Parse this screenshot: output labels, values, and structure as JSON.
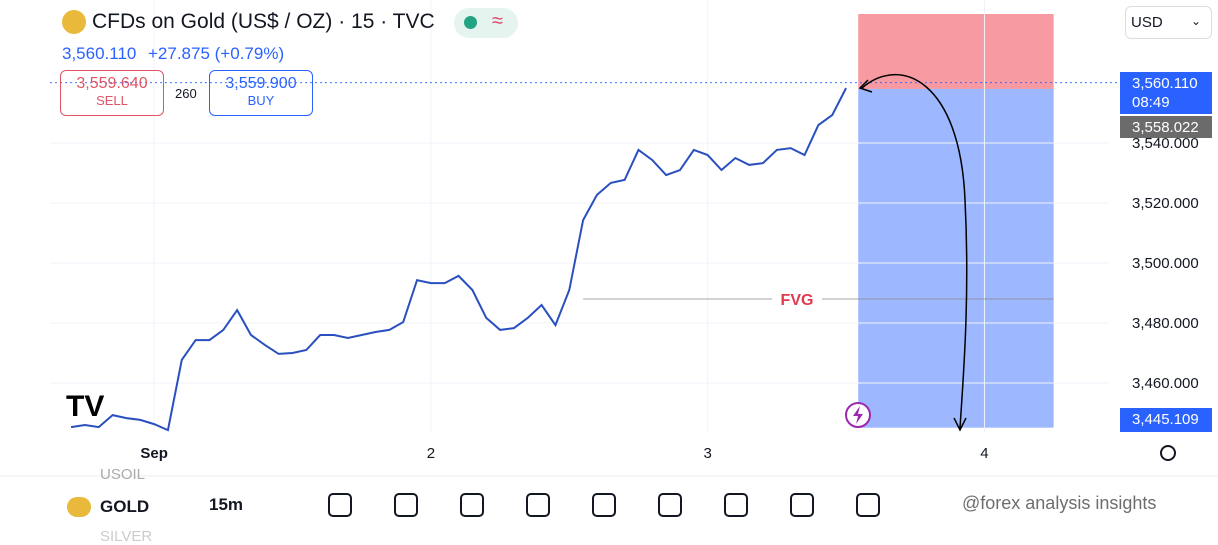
{
  "header": {
    "title": "CFDs on Gold (US$ / OZ) · 15 · TVC",
    "price": "3,560.110",
    "change": "+27.875 (+0.79%)",
    "sell_price": "3,559.640",
    "sell_label": "SELL",
    "spread": "260",
    "buy_price": "3,559.900",
    "buy_label": "BUY",
    "currency": "USD"
  },
  "chart_data": {
    "type": "line",
    "color": "#2a4fbf",
    "x": [
      0.7,
      0.75,
      0.8,
      0.85,
      0.9,
      0.95,
      1.0,
      1.05,
      1.1,
      1.15,
      1.2,
      1.25,
      1.3,
      1.35,
      1.4,
      1.45,
      1.5,
      1.55,
      1.6,
      1.65,
      1.7,
      1.75,
      1.8,
      1.85,
      1.9,
      1.95,
      2.0,
      2.05,
      2.1,
      2.15,
      2.2,
      2.25,
      2.3,
      2.35,
      2.4,
      2.45,
      2.5,
      2.55,
      2.6,
      2.65,
      2.7,
      2.75,
      2.8,
      2.85,
      2.9,
      2.95,
      3.0,
      3.05,
      3.1,
      3.15,
      3.2,
      3.25,
      3.3,
      3.35,
      3.4,
      3.45,
      3.5
    ],
    "values": [
      3445.3,
      3446.0,
      3445.3,
      3449.3,
      3448.3,
      3447.7,
      3446.3,
      3444.3,
      3467.7,
      3474.3,
      3474.3,
      3477.7,
      3484.3,
      3476.0,
      3472.7,
      3469.7,
      3470.0,
      3471.0,
      3476.0,
      3476.0,
      3475.0,
      3476.0,
      3477.0,
      3477.7,
      3480.3,
      3494.3,
      3493.3,
      3493.3,
      3495.7,
      3491.0,
      3481.7,
      3477.7,
      3478.3,
      3481.7,
      3486.0,
      3479.3,
      3491.0,
      3514.3,
      3522.7,
      3526.7,
      3527.7,
      3537.7,
      3534.3,
      3529.3,
      3531.0,
      3537.7,
      3536.0,
      3531.0,
      3535.0,
      3532.7,
      3533.3,
      3537.7,
      3538.3,
      3536.0,
      3546.0,
      3549.3,
      3558.3
    ],
    "xlim": [
      0.66,
      4.45
    ],
    "ylim": [
      3443.67,
      3587.67
    ],
    "xticks": [
      {
        "value": 1,
        "label": "Sep"
      },
      2,
      3,
      4
    ],
    "yticks": [
      {
        "value": 3460,
        "label": "3,460.000"
      },
      {
        "value": 3480,
        "label": "3,480.000"
      },
      {
        "value": 3500,
        "label": "3,500.000"
      },
      {
        "value": 3520,
        "label": "3,520.000"
      },
      {
        "value": 3540,
        "label": "3,540.000"
      }
    ],
    "grid": true,
    "last_price": {
      "value": 3560.11,
      "label": "3,560.110",
      "countdown": "08:49"
    },
    "position": {
      "x": [
        3.544,
        4.25
      ],
      "stop": 3583,
      "entry": {
        "value": 3558.022,
        "label": "3,558.022"
      },
      "target": {
        "value": 3445.109,
        "label": "3,445.109"
      }
    },
    "fvg": {
      "label": "FVG",
      "value": 3488,
      "x": [
        2.55,
        4.25
      ]
    }
  },
  "toolbar": {
    "symbol": "GOLD",
    "interval": "15m",
    "above": "USOIL",
    "below": "SILVER",
    "watermark": "@forex analysis insights"
  }
}
